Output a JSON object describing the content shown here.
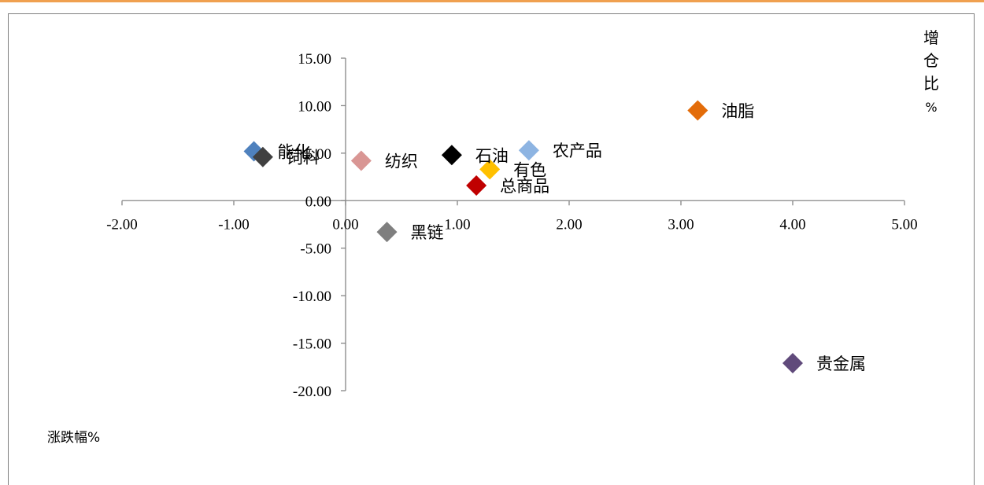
{
  "chart_data": {
    "type": "scatter",
    "title": "",
    "xlabel": "涨跌幅%",
    "ylabel": "增仓比%",
    "ylabel_chars": [
      "增",
      "仓",
      "比",
      "%"
    ],
    "xlim": [
      -2,
      5
    ],
    "ylim": [
      -20,
      15
    ],
    "x_ticks": [
      -2,
      -1,
      0,
      1,
      2,
      3,
      4,
      5
    ],
    "y_ticks": [
      -20,
      -15,
      -10,
      -5,
      0,
      5,
      10,
      15
    ],
    "x_tick_labels": [
      "-2.00",
      "-1.00",
      "0.00",
      "1.00",
      "2.00",
      "3.00",
      "4.00",
      "5.00"
    ],
    "y_tick_labels": [
      "-20.00",
      "-15.00",
      "-10.00",
      "-5.00",
      "0.00",
      "5.00",
      "10.00",
      "15.00"
    ],
    "grid": false,
    "legend": "none",
    "points": [
      {
        "label": "能化",
        "x": -0.82,
        "y": 5.2,
        "color": "#4f81bd"
      },
      {
        "label": "饲料",
        "x": -0.74,
        "y": 4.6,
        "color": "#404040"
      },
      {
        "label": "纺织",
        "x": 0.14,
        "y": 4.2,
        "color": "#d99694"
      },
      {
        "label": "石油",
        "x": 0.95,
        "y": 4.8,
        "color": "#000000"
      },
      {
        "label": "农产品",
        "x": 1.64,
        "y": 5.3,
        "color": "#8db4e2"
      },
      {
        "label": "有色",
        "x": 1.29,
        "y": 3.3,
        "color": "#ffc000"
      },
      {
        "label": "总商品",
        "x": 1.17,
        "y": 1.6,
        "color": "#c00000"
      },
      {
        "label": "油脂",
        "x": 3.15,
        "y": 9.5,
        "color": "#e36c09"
      },
      {
        "label": "黑链",
        "x": 0.37,
        "y": -3.3,
        "color": "#7f7f7f"
      },
      {
        "label": "贵金属",
        "x": 4.0,
        "y": -17.1,
        "color": "#604a7b"
      }
    ]
  }
}
